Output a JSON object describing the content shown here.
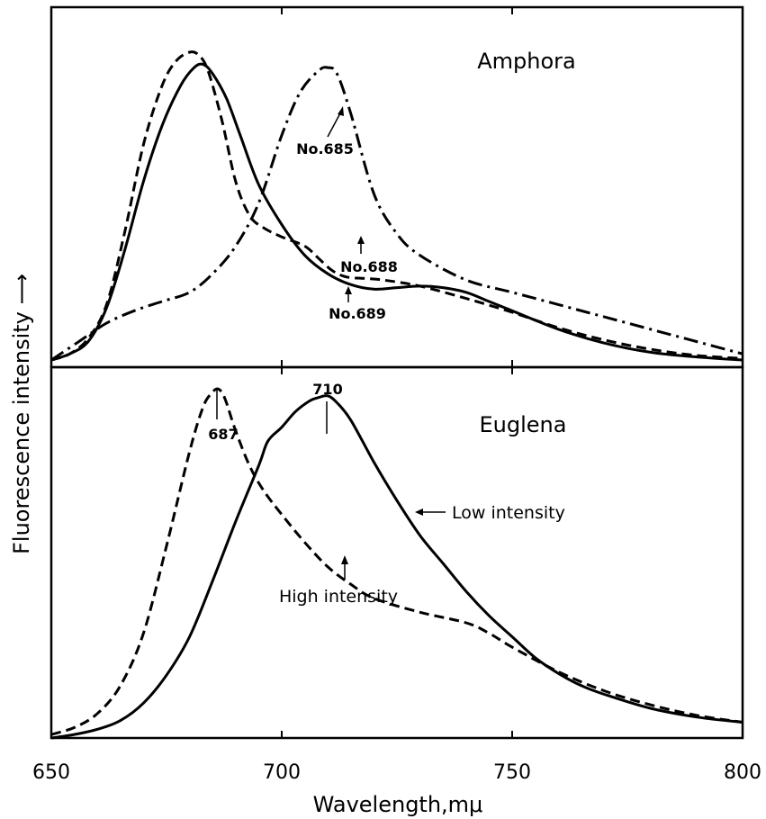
{
  "chart_data": [
    {
      "type": "line",
      "title": "Amphora",
      "xlim": [
        650,
        800
      ],
      "y_tick_labels": false,
      "series": [
        {
          "name": "No.689",
          "style": "solid",
          "x": [
            650,
            654,
            658,
            662,
            666,
            670,
            674,
            678,
            681,
            683,
            685,
            688,
            691,
            695,
            700,
            705,
            710,
            715,
            720,
            725,
            730,
            735,
            740,
            745,
            750,
            760,
            770,
            780,
            790,
            800
          ],
          "y": [
            0.0,
            0.02,
            0.06,
            0.17,
            0.36,
            0.58,
            0.76,
            0.89,
            0.95,
            0.96,
            0.93,
            0.85,
            0.73,
            0.57,
            0.44,
            0.34,
            0.28,
            0.245,
            0.23,
            0.235,
            0.24,
            0.235,
            0.22,
            0.19,
            0.16,
            0.1,
            0.055,
            0.025,
            0.01,
            0.0
          ]
        },
        {
          "name": "No.688",
          "style": "dashed",
          "x": [
            650,
            654,
            658,
            662,
            666,
            670,
            674,
            677,
            680,
            682,
            684,
            687,
            690,
            693,
            696,
            700,
            705,
            708,
            711,
            714,
            718,
            722,
            730,
            740,
            750,
            760,
            770,
            780,
            790,
            800
          ],
          "y": [
            0.0,
            0.02,
            0.07,
            0.18,
            0.42,
            0.7,
            0.89,
            0.97,
            1.0,
            0.99,
            0.94,
            0.78,
            0.58,
            0.47,
            0.43,
            0.4,
            0.37,
            0.33,
            0.29,
            0.27,
            0.265,
            0.26,
            0.24,
            0.2,
            0.155,
            0.105,
            0.065,
            0.035,
            0.015,
            0.005
          ]
        },
        {
          "name": "No.685",
          "style": "dash-dot",
          "x": [
            650,
            656,
            662,
            668,
            674,
            680,
            685,
            690,
            695,
            700,
            704,
            708,
            710,
            712,
            715,
            720,
            725,
            730,
            740,
            750,
            760,
            770,
            780,
            790,
            800
          ],
          "y": [
            0.0,
            0.06,
            0.12,
            0.16,
            0.19,
            0.22,
            0.28,
            0.37,
            0.51,
            0.73,
            0.87,
            0.94,
            0.95,
            0.93,
            0.8,
            0.54,
            0.41,
            0.34,
            0.26,
            0.22,
            0.18,
            0.14,
            0.1,
            0.06,
            0.02
          ]
        }
      ],
      "annotations": [
        {
          "text": "No.685",
          "series": "No.685",
          "x": 713
        },
        {
          "text": "No.688",
          "series": "No.688",
          "x": 717
        },
        {
          "text": "No.689",
          "series": "No.689",
          "x": 716
        }
      ]
    },
    {
      "type": "line",
      "title": "Euglena",
      "xlim": [
        650,
        800
      ],
      "x_ticks": [
        650,
        700,
        750,
        800
      ],
      "xlabel": "Wavelength,mμ",
      "y_tick_labels": false,
      "series": [
        {
          "name": "Low intensity",
          "style": "solid",
          "x": [
            650,
            655,
            660,
            665,
            670,
            675,
            680,
            685,
            690,
            695,
            697,
            700,
            703,
            706,
            708,
            710,
            712,
            715,
            720,
            725,
            730,
            735,
            740,
            745,
            750,
            755,
            760,
            765,
            770,
            780,
            790,
            800
          ],
          "y": [
            0.0,
            0.01,
            0.025,
            0.05,
            0.1,
            0.18,
            0.29,
            0.45,
            0.62,
            0.78,
            0.85,
            0.89,
            0.935,
            0.965,
            0.975,
            0.98,
            0.96,
            0.91,
            0.79,
            0.68,
            0.58,
            0.5,
            0.42,
            0.35,
            0.29,
            0.23,
            0.185,
            0.15,
            0.125,
            0.085,
            0.06,
            0.045
          ]
        },
        {
          "name": "High intensity",
          "style": "dashed",
          "x": [
            650,
            655,
            660,
            665,
            670,
            675,
            680,
            683,
            685,
            686,
            687,
            688,
            690,
            693,
            696,
            700,
            705,
            710,
            715,
            720,
            730,
            740,
            745,
            750,
            760,
            770,
            780,
            790,
            800
          ],
          "y": [
            0.01,
            0.03,
            0.07,
            0.15,
            0.3,
            0.55,
            0.82,
            0.95,
            0.99,
            1.0,
            0.99,
            0.96,
            0.88,
            0.78,
            0.71,
            0.64,
            0.56,
            0.49,
            0.44,
            0.4,
            0.36,
            0.33,
            0.3,
            0.26,
            0.19,
            0.135,
            0.095,
            0.065,
            0.045
          ]
        }
      ],
      "annotations": [
        {
          "text": "687",
          "x": 686
        },
        {
          "text": "710",
          "x": 710
        },
        {
          "text": "Low intensity",
          "series": "Low intensity"
        },
        {
          "text": "High intensity",
          "series": "High intensity"
        }
      ]
    }
  ],
  "labels": {
    "top_title": "Amphora",
    "bottom_title": "Euglena",
    "y_axis_label": "Fluorescence  intensity ⟶",
    "x_axis_label": "Wavelength,mμ",
    "ann_685": "No.685",
    "ann_688": "No.688",
    "ann_689": "No.689",
    "ann_687": "687",
    "ann_710": "710",
    "ann_low": "Low intensity",
    "ann_high": "High intensity",
    "tick_650": "650",
    "tick_700": "700",
    "tick_750": "750",
    "tick_800": "800"
  }
}
